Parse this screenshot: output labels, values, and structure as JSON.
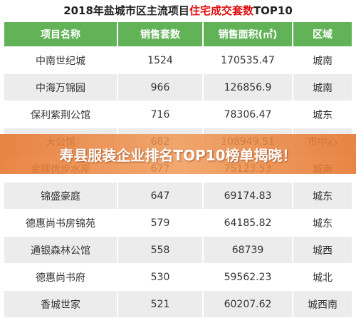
{
  "title": {
    "parts": [
      "2018年盐城市区主流项目",
      "住宅成交套数",
      "TOP10"
    ]
  },
  "table": {
    "header": [
      "项目名称",
      "销售套数",
      "销售面积(㎡)",
      "区域"
    ],
    "rows": [
      [
        "中南世纪城",
        "1524",
        "170535.47",
        "城南"
      ],
      [
        "中海万锦园",
        "966",
        "126856.9",
        "城南"
      ],
      [
        "保利紫荆公馆",
        "716",
        "78306.47",
        "城东"
      ],
      [
        "大公馆",
        "682",
        "108949.51",
        "市中心"
      ],
      [
        "金辉优步水岸",
        "677",
        "75123.53",
        "城南"
      ],
      [
        "锦盛豪庭",
        "647",
        "69174.83",
        "城东"
      ],
      [
        "德惠尚书房锦苑",
        "579",
        "64185.82",
        "城东"
      ],
      [
        "通银森林公馆",
        "558",
        "68739",
        "城西"
      ],
      [
        "德惠尚书府",
        "530",
        "59562.23",
        "城北"
      ],
      [
        "香城世家",
        "521",
        "60207.62",
        "城西南"
      ]
    ]
  },
  "banner": "寿县服装企业排名TOP10榜单揭晓！"
}
